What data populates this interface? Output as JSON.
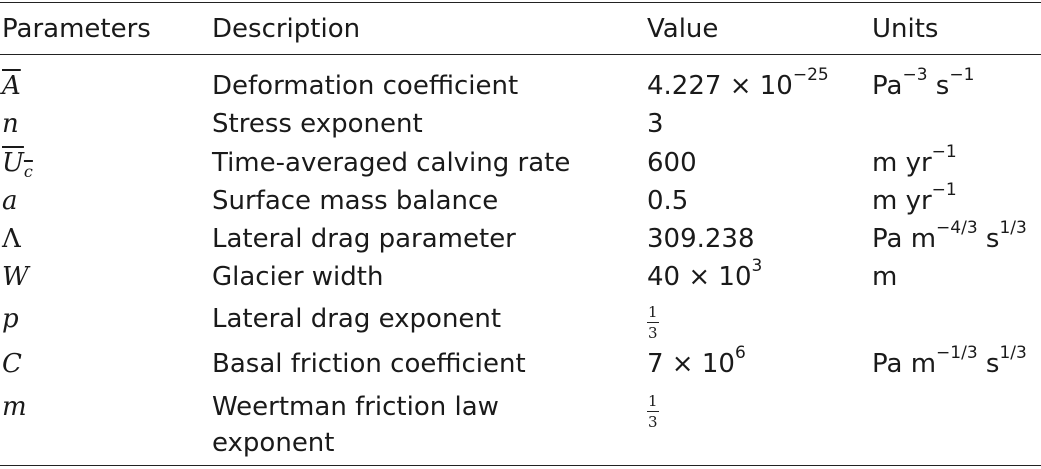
{
  "header": {
    "parameters": "Parameters",
    "description": "Description",
    "value": "Value",
    "units": "Units"
  },
  "rows": [
    {
      "symbol": "A",
      "description": "Deformation coefficient",
      "value_mantissa": "4.227 × 10",
      "value_exp": "−25",
      "unit_base": "Pa",
      "unit_exp": "−3",
      "unit_rest": " s",
      "unit_exp2": "−1"
    },
    {
      "symbol": "n",
      "description": "Stress exponent",
      "value": "3"
    },
    {
      "symbol": "U",
      "symbol_sub": "c",
      "description": "Time-averaged calving rate",
      "value": "600",
      "unit_base": "m yr",
      "unit_exp": "−1"
    },
    {
      "symbol": "a",
      "description": "Surface mass balance",
      "value": "0.5",
      "unit_base": "m yr",
      "unit_exp": "−1"
    },
    {
      "symbol": "Λ",
      "description": "Lateral drag parameter",
      "value": "309.238",
      "unit_base": "Pa m",
      "unit_exp": "−4/3",
      "unit_rest": " s",
      "unit_exp2": "1/3"
    },
    {
      "symbol": "W",
      "description": "Glacier width",
      "value_mantissa": "40 × 10",
      "value_exp": "3",
      "unit_base": "m"
    },
    {
      "symbol": "p",
      "description": "Lateral drag exponent",
      "frac_num": "1",
      "frac_den": "3"
    },
    {
      "symbol": "C",
      "description": "Basal friction coefficient",
      "value_mantissa": "7 × 10",
      "value_exp": "6",
      "unit_base": "Pa m",
      "unit_exp": "−1/3",
      "unit_rest": " s",
      "unit_exp2": "1/3"
    },
    {
      "symbol": "m",
      "description_line1": "Weertman friction law",
      "description_line2": "exponent",
      "frac_num": "1",
      "frac_den": "3"
    }
  ]
}
